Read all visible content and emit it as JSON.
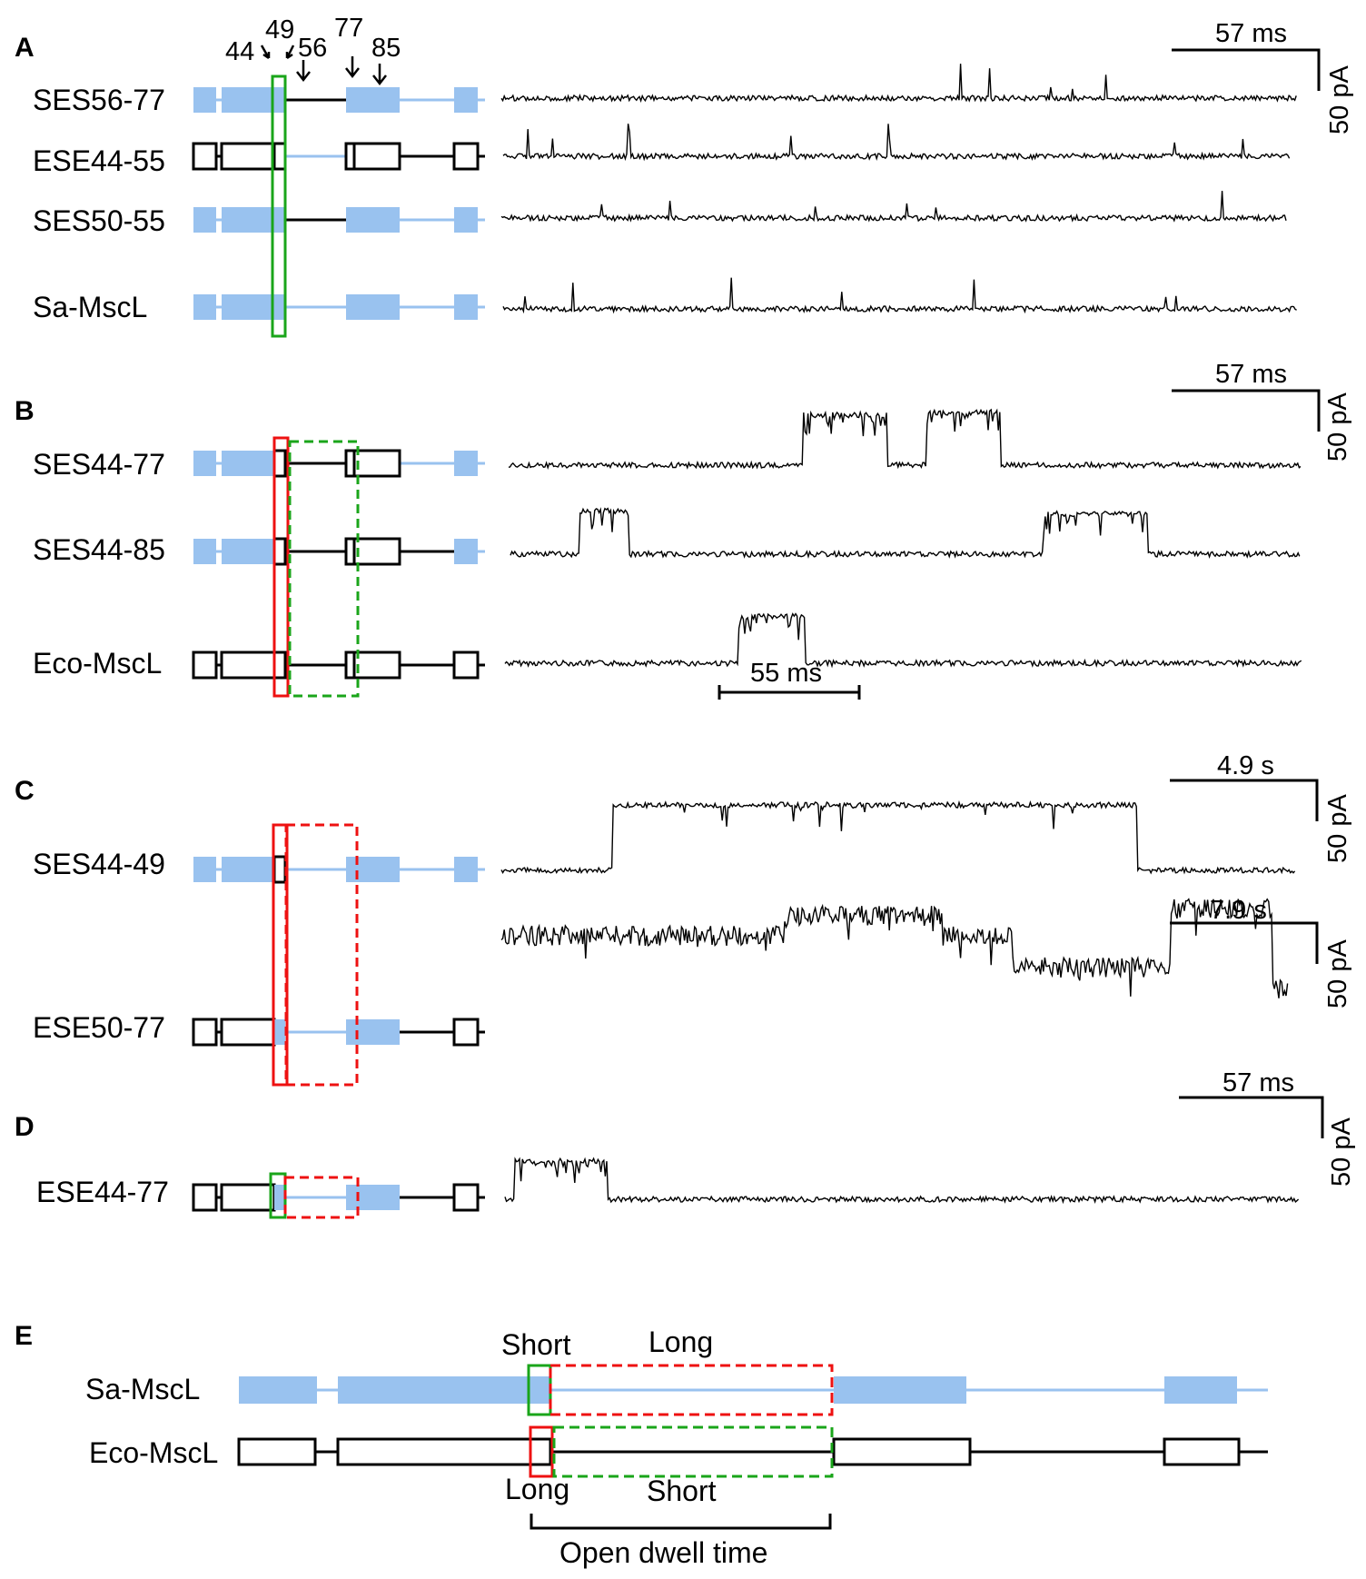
{
  "colors": {
    "sa_fill": "#99c2ef",
    "eco_stroke": "#000000",
    "short_box": "#1aa51a",
    "long_box": "#ee1111"
  },
  "panels": [
    {
      "letter": "A"
    },
    {
      "letter": "B"
    },
    {
      "letter": "C"
    },
    {
      "letter": "D"
    },
    {
      "letter": "E"
    }
  ],
  "position_markers": [
    "44",
    "49",
    "56",
    "77",
    "85"
  ],
  "rows": [
    {
      "label": "SES56-77",
      "segments": [
        1,
        1,
        1,
        0,
        1,
        1,
        1,
        1,
        1
      ],
      "trace": {
        "type": "flicker",
        "seed": 1
      }
    },
    {
      "label": "ESE44-55",
      "segments": [
        0,
        0,
        0,
        1,
        0,
        0,
        0,
        0,
        0
      ],
      "trace": {
        "type": "flicker",
        "seed": 2
      }
    },
    {
      "label": "SES50-55",
      "segments": [
        1,
        1,
        1,
        0,
        1,
        1,
        1,
        1,
        1
      ],
      "trace": {
        "type": "flicker",
        "seed": 3
      }
    },
    {
      "label": "Sa-MscL",
      "segments": [
        1,
        1,
        1,
        1,
        1,
        1,
        1,
        1,
        1
      ],
      "trace": {
        "type": "flicker",
        "seed": 4
      }
    },
    {
      "label": "SES44-77",
      "segments": [
        1,
        1,
        0,
        0,
        0,
        0,
        1,
        1,
        1
      ],
      "trace": {
        "type": "events",
        "seed": 5
      }
    },
    {
      "label": "SES44-85",
      "segments": [
        1,
        1,
        0,
        0,
        0,
        0,
        0,
        1,
        1
      ],
      "trace": {
        "type": "events",
        "seed": 6
      }
    },
    {
      "label": "Eco-MscL",
      "segments": [
        0,
        0,
        0,
        0,
        0,
        0,
        0,
        0,
        0
      ],
      "trace": {
        "type": "events",
        "seed": 7
      }
    },
    {
      "label": "SES44-49",
      "segments": [
        1,
        1,
        0,
        1,
        1,
        1,
        1,
        1,
        1
      ],
      "trace": {
        "type": "long",
        "seed": 8
      }
    },
    {
      "label": "ESE50-77",
      "segments": [
        0,
        0,
        1,
        1,
        1,
        1,
        0,
        0,
        0
      ],
      "trace": {
        "type": "multi",
        "seed": 9
      }
    },
    {
      "label": "ESE44-77",
      "segments": [
        0,
        0,
        1,
        1,
        1,
        1,
        0,
        0,
        0
      ],
      "trace": {
        "type": "events",
        "seed": 10
      }
    }
  ],
  "scale_bars": [
    {
      "time": "57 ms",
      "current": "50 pA"
    },
    {
      "time": "57 ms",
      "current": "50 pA"
    },
    {
      "time": "4.9 s",
      "current": "50 pA"
    },
    {
      "time": "7.9 s",
      "current": "50 pA"
    },
    {
      "time": "57 ms",
      "current": "50 pA"
    }
  ],
  "inline_bar_label": "55 ms",
  "summary": {
    "sa_label": "Sa-MscL",
    "eco_label": "Eco-MscL",
    "sa_short": "Short",
    "sa_long": "Long",
    "eco_long": "Long",
    "eco_short": "Short",
    "bracket_label": "Open dwell  time"
  }
}
